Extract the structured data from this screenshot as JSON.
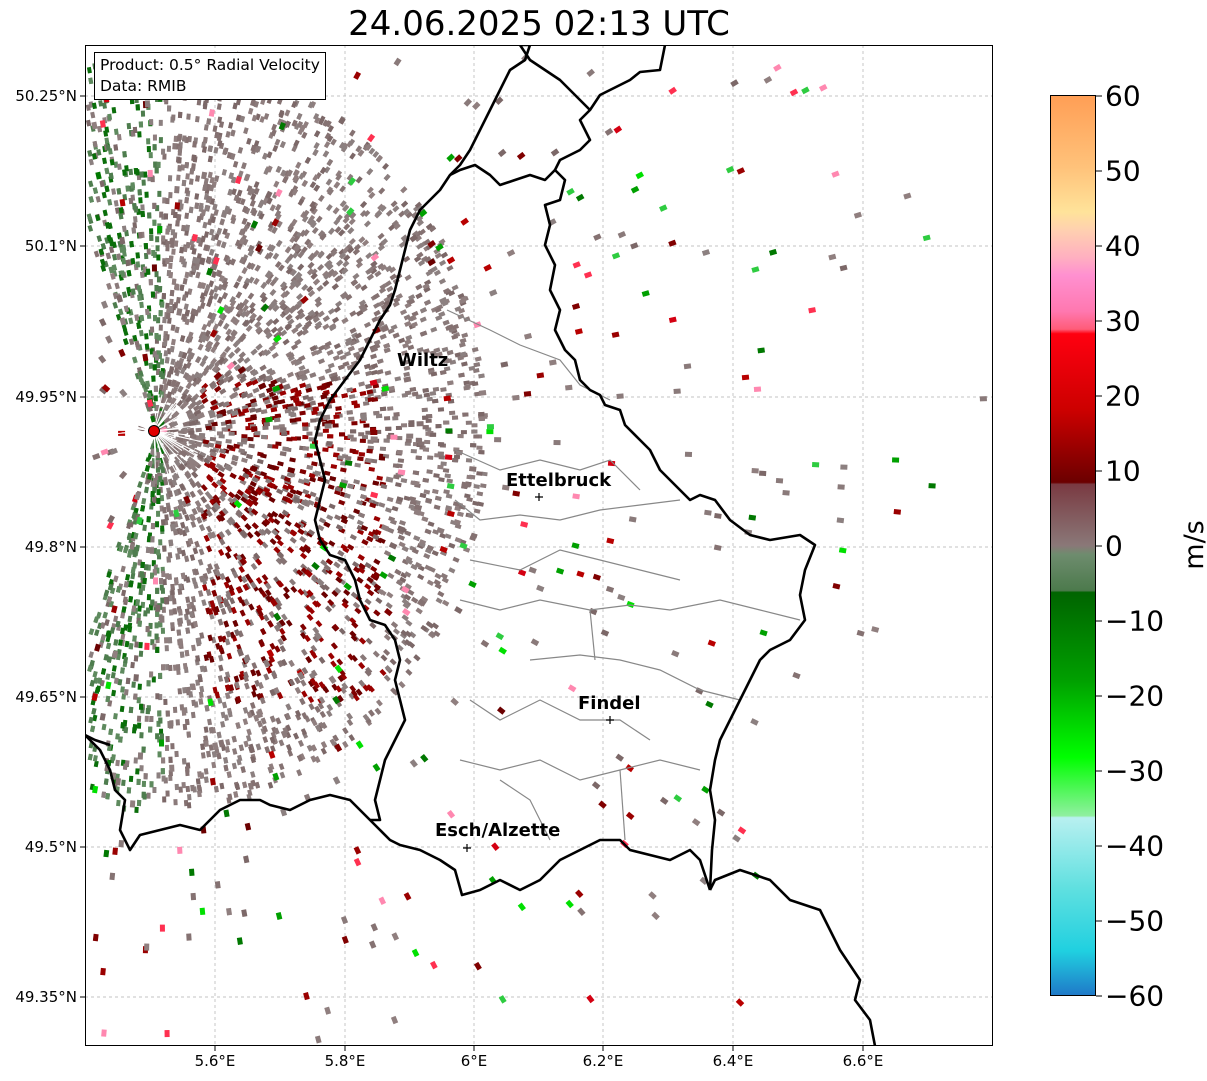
{
  "title": "24.06.2025 02:13 UTC",
  "info": {
    "product": "Product: 0.5° Radial Velocity",
    "data": "Data: RMIB"
  },
  "cities": [
    {
      "name": "Wiltz",
      "lon": 5.93,
      "lat": 49.966
    },
    {
      "name": "Ettelbruck",
      "lon": 6.104,
      "lat": 49.847
    },
    {
      "name": "Findel",
      "lon": 6.211,
      "lat": 49.627
    },
    {
      "name": "Esch/Alzette",
      "lon": 5.98,
      "lat": 49.5
    }
  ],
  "radar_site": {
    "lon": 5.505,
    "lat": 49.914
  },
  "axes": {
    "lat_ticks": [
      "50.25°N",
      "50.1°N",
      "49.95°N",
      "49.8°N",
      "49.65°N",
      "49.5°N",
      "49.35°N"
    ],
    "lon_ticks": [
      "5.6°E",
      "5.8°E",
      "6°E",
      "6.2°E",
      "6.4°E",
      "6.6°E"
    ],
    "lon_range": [
      5.4,
      6.8
    ],
    "lat_range": [
      49.3,
      50.3
    ]
  },
  "colorbar": {
    "unit": "m/s",
    "ticks": [
      "60",
      "50",
      "40",
      "30",
      "20",
      "10",
      "0",
      "−10",
      "−20",
      "−30",
      "−40",
      "−50",
      "−60"
    ],
    "range": [
      -60,
      60
    ]
  },
  "colors": {
    "border_country": "#000000",
    "border_canton": "#888888",
    "radar_site": "#e00000"
  }
}
